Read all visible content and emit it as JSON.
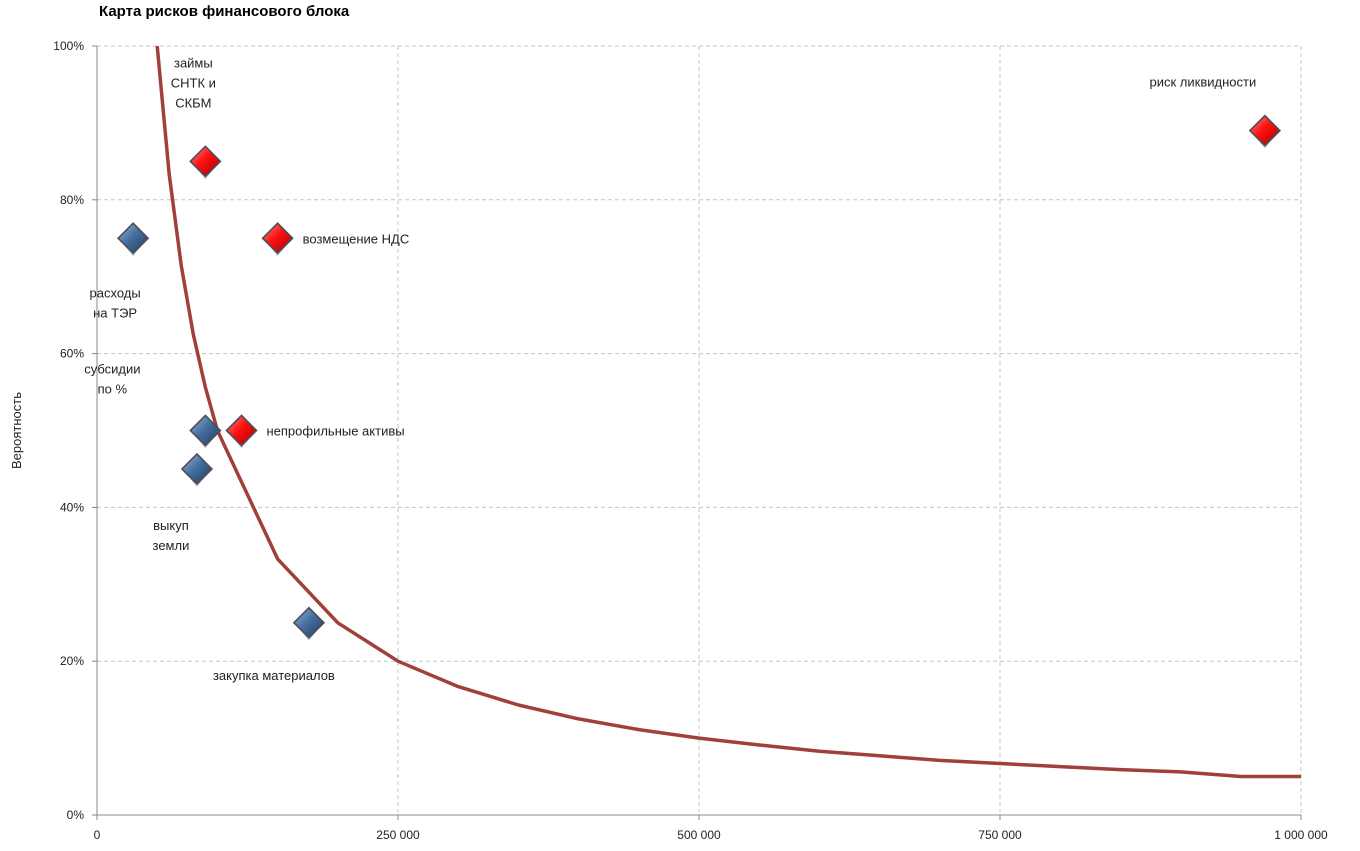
{
  "chart_data": {
    "type": "scatter",
    "title": "Карта рисков финансового блока",
    "xlabel": "",
    "ylabel": "Вероятность",
    "xlim": [
      0,
      1000000
    ],
    "ylim": [
      0,
      1
    ],
    "x_ticks": [
      "0",
      "250 000",
      "500 000",
      "750 000",
      "1 000 000"
    ],
    "y_ticks": [
      "0%",
      "20%",
      "40%",
      "60%",
      "80%",
      "100%"
    ],
    "grid": true,
    "legend": "none",
    "points": [
      {
        "label": "займы СНТК и СКБМ",
        "lines": [
          "займы",
          "СНТК и",
          "СКБМ"
        ],
        "x": 90000,
        "y": 0.85,
        "color": "#e8000b"
      },
      {
        "label": "возмещение НДС",
        "lines": [
          "возмещение НДС"
        ],
        "x": 150000,
        "y": 0.75,
        "color": "#e8000b"
      },
      {
        "label": "расходы на ТЭР",
        "lines": [
          "расходы",
          "на ТЭР"
        ],
        "x": 30000,
        "y": 0.75,
        "color": "#3a6a9e"
      },
      {
        "label": "субсидии по %",
        "lines": [
          "субсидии",
          "по %"
        ],
        "x": 90000,
        "y": 0.5,
        "color": "#3a6a9e"
      },
      {
        "label": "непрофильные активы",
        "lines": [
          "непрофильные активы"
        ],
        "x": 120000,
        "y": 0.5,
        "color": "#e8000b"
      },
      {
        "label": "выкуп земли",
        "lines": [
          "выкуп",
          "земли"
        ],
        "x": 83000,
        "y": 0.45,
        "color": "#3a6a9e"
      },
      {
        "label": "закупка материалов",
        "lines": [
          "закупка материалов"
        ],
        "x": 176000,
        "y": 0.25,
        "color": "#3a6a9e"
      },
      {
        "label": "риск ликвидности",
        "lines": [
          "риск ликвидности"
        ],
        "x": 970000,
        "y": 0.89,
        "color": "#e8000b"
      }
    ],
    "curve": {
      "color": "#a0403a",
      "x": [
        50000,
        60000,
        70000,
        80000,
        90000,
        100000,
        150000,
        200000,
        250000,
        300000,
        350000,
        400000,
        450000,
        500000,
        550000,
        600000,
        650000,
        700000,
        750000,
        800000,
        850000,
        900000,
        950000,
        1000000
      ],
      "y": [
        1.0,
        0.833,
        0.714,
        0.625,
        0.556,
        0.5,
        0.333,
        0.25,
        0.2,
        0.167,
        0.143,
        0.125,
        0.111,
        0.1,
        0.091,
        0.083,
        0.077,
        0.071,
        0.067,
        0.063,
        0.059,
        0.056,
        0.05,
        0.05
      ]
    }
  }
}
